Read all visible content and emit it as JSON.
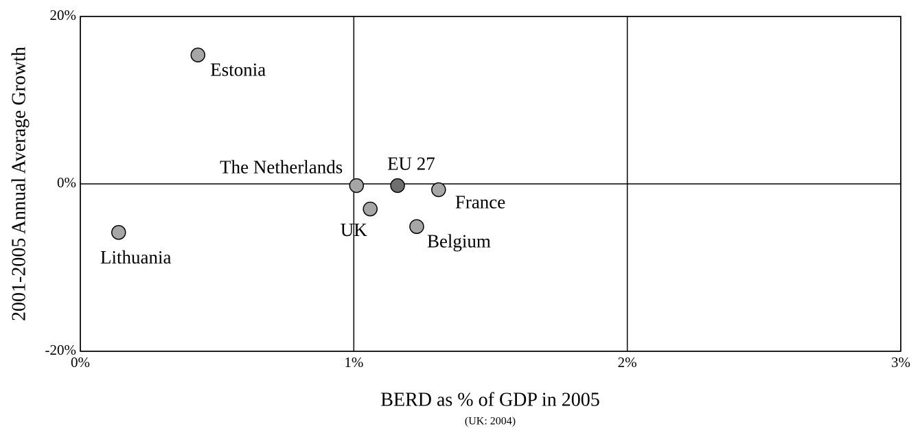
{
  "chart_data": {
    "type": "scatter",
    "x_label": "BERD as % of GDP in 2005",
    "x_note": "(UK: 2004)",
    "y_label": "2001-2005 Annual Average Growth",
    "labels": [
      "Estonia",
      "Lithuania",
      "The Netherlands",
      "EU 27",
      "France",
      "UK",
      "Belgium"
    ],
    "x": [
      0.43,
      0.14,
      1.01,
      1.16,
      1.31,
      1.06,
      1.23
    ],
    "y": [
      15.4,
      -5.8,
      -0.2,
      -0.2,
      -0.7,
      -3.0,
      -5.1
    ],
    "colors": [
      "#a6a6a6",
      "#a6a6a6",
      "#a6a6a6",
      "#6e6e6e",
      "#a6a6a6",
      "#a6a6a6",
      "#a6a6a6"
    ],
    "xlim": [
      0,
      3
    ],
    "ylim": [
      -20,
      20
    ],
    "xticks": [
      {
        "value": 0,
        "label": "0%"
      },
      {
        "value": 1,
        "label": "1%"
      },
      {
        "value": 2,
        "label": "2%"
      },
      {
        "value": 3,
        "label": "3%"
      }
    ],
    "yticks": [
      {
        "value": -20,
        "label": "-20%"
      },
      {
        "value": 0,
        "label": "0%"
      },
      {
        "value": 20,
        "label": "20%"
      }
    ],
    "grid": true
  }
}
